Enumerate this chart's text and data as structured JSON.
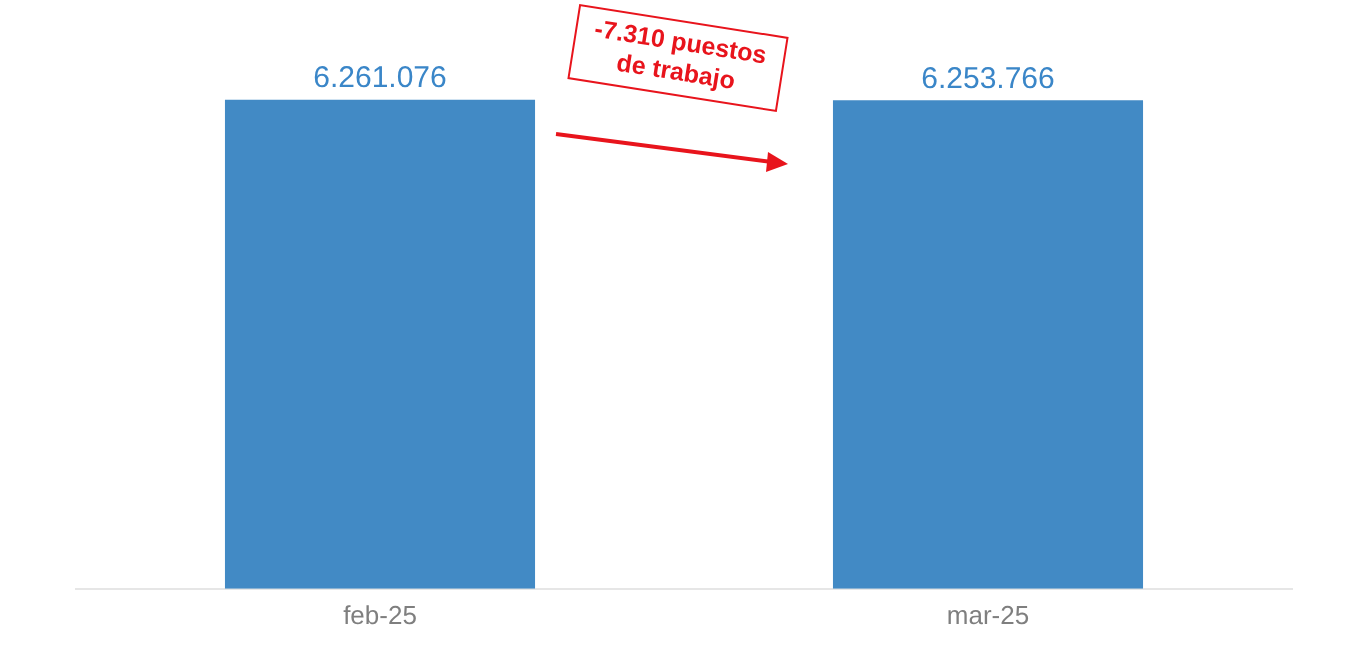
{
  "chart_data": {
    "type": "bar",
    "categories": [
      "feb-25",
      "mar-25"
    ],
    "values": [
      6261076,
      6253766
    ],
    "color": "#428ac5",
    "value_labels": [
      "6.261.076",
      "6.253.766"
    ],
    "grid": false,
    "legend": false,
    "tick_labels": "x",
    "annotations": [
      "-7.310 puestos de trabajo"
    ]
  }
}
